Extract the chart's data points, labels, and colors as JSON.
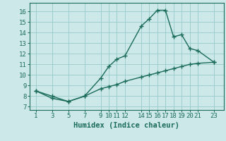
{
  "line1_x": [
    1,
    3,
    5,
    7,
    9,
    10,
    11,
    12,
    14,
    15,
    16,
    17,
    18,
    19,
    20,
    21,
    23
  ],
  "line1_y": [
    8.5,
    7.8,
    7.5,
    8.0,
    9.7,
    10.8,
    11.5,
    11.8,
    14.6,
    15.3,
    16.1,
    16.1,
    13.6,
    13.8,
    12.5,
    12.3,
    11.2
  ],
  "line2_x": [
    1,
    3,
    5,
    7,
    9,
    10,
    11,
    12,
    14,
    15,
    16,
    17,
    18,
    19,
    20,
    21,
    23
  ],
  "line2_y": [
    8.5,
    8.0,
    7.5,
    8.0,
    8.7,
    8.9,
    9.1,
    9.4,
    9.8,
    10.0,
    10.2,
    10.4,
    10.6,
    10.8,
    11.0,
    11.1,
    11.2
  ],
  "line_color": "#1a6b5a",
  "bg_color": "#cce8e8",
  "grid_color": "#9dcece",
  "xlabel": "Humidex (Indice chaleur)",
  "xticks": [
    1,
    3,
    5,
    7,
    9,
    10,
    11,
    12,
    14,
    15,
    16,
    17,
    18,
    19,
    20,
    21,
    23
  ],
  "yticks": [
    7,
    8,
    9,
    10,
    11,
    12,
    13,
    14,
    15,
    16
  ],
  "xlim": [
    0.2,
    24.2
  ],
  "ylim": [
    6.7,
    16.8
  ],
  "tick_fontsize": 6.5,
  "xlabel_fontsize": 7.5
}
